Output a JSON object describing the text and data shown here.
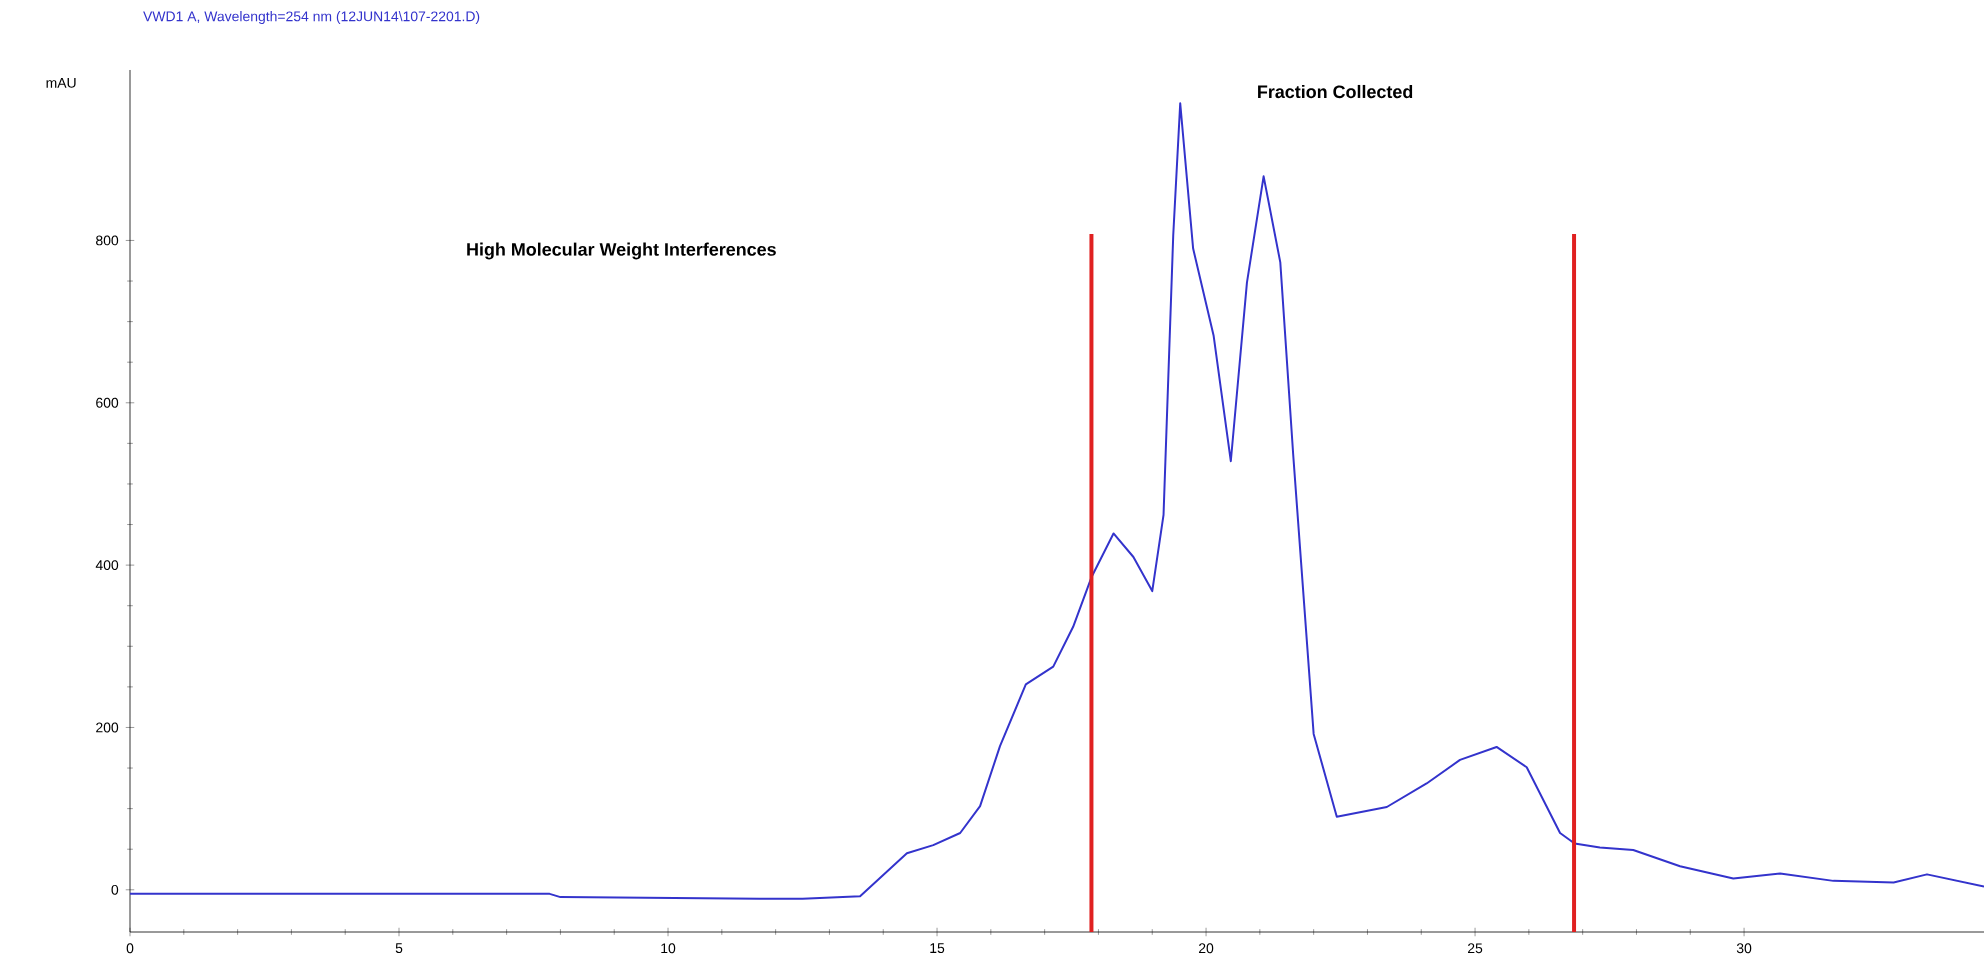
{
  "chart_data": {
    "type": "line",
    "title": "VWD1 A, Wavelength=254 nm (12JUN14\\107-2201.D)",
    "ylabel": "mAU",
    "x": [
      0,
      7.8,
      8.0,
      11.7,
      12.5,
      13.57,
      14.44,
      14.93,
      15.43,
      15.8,
      16.17,
      16.65,
      17.16,
      17.53,
      17.87,
      18.28,
      18.65,
      19.0,
      19.21,
      19.39,
      19.52,
      19.76,
      20.14,
      20.46,
      20.76,
      21.07,
      21.38,
      21.62,
      22.0,
      22.43,
      23.36,
      24.1,
      24.72,
      25.4,
      25.96,
      26.58,
      26.85,
      27.32,
      27.94,
      28.81,
      29.8,
      30.67,
      31.66,
      32.78,
      33.4,
      34.46
    ],
    "series": [
      {
        "color": "#3333cc",
        "values": [
          -5,
          -5,
          -9,
          -11,
          -11,
          -8,
          45,
          55,
          70,
          103,
          177,
          253,
          275,
          324,
          385,
          439,
          410,
          368,
          462,
          806,
          969,
          790,
          683,
          528,
          748,
          879,
          773,
          536,
          192,
          90,
          102,
          131,
          160,
          176,
          151,
          70,
          57,
          52,
          49,
          29,
          14,
          20,
          11,
          9,
          19,
          4
        ]
      }
    ],
    "xlim": [
      0,
      34.46
    ],
    "ylim": [
      -52,
      1010
    ],
    "xticks": [
      0,
      5,
      10,
      15,
      20,
      25,
      30
    ],
    "yticks": [
      0,
      200,
      400,
      600,
      800
    ],
    "ref_lines": [
      {
        "axis": "x",
        "value": 17.87,
        "color": "#e02020"
      },
      {
        "axis": "x",
        "value": 26.84,
        "color": "#e02020"
      }
    ],
    "annotations": [
      "High Molecular Weight Interferences",
      "Fraction Collected"
    ],
    "grid": false,
    "marker": "none",
    "line_style": "solid"
  }
}
